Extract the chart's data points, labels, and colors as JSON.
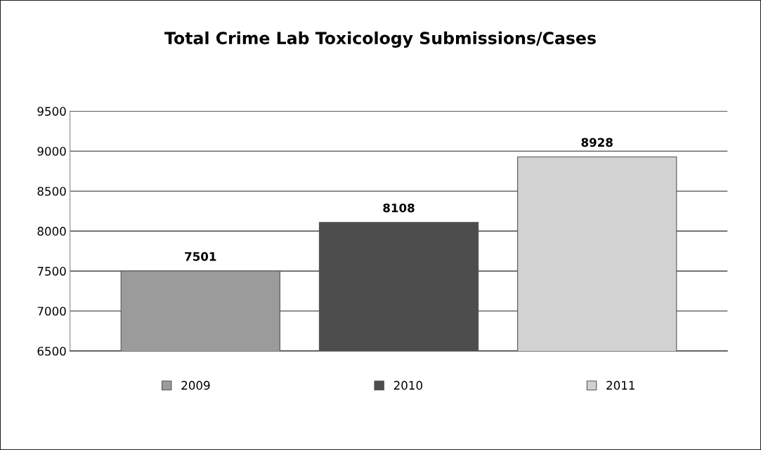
{
  "chart_data": {
    "type": "bar",
    "title": "Total Crime Lab Toxicology Submissions/Cases",
    "categories": [
      null
    ],
    "series": [
      {
        "name": "2009",
        "color": "#9b9b9b",
        "values": [
          7501
        ]
      },
      {
        "name": "2010",
        "color": "#4d4d4d",
        "values": [
          8108
        ]
      },
      {
        "name": "2011",
        "color": "#d2d2d2",
        "values": [
          8928
        ]
      }
    ],
    "ylim": [
      6500,
      9500
    ],
    "yticks": [
      6500,
      7000,
      7500,
      8000,
      8500,
      9000,
      9500
    ],
    "grid": "y",
    "legend": "bottom",
    "data_labels": true
  }
}
